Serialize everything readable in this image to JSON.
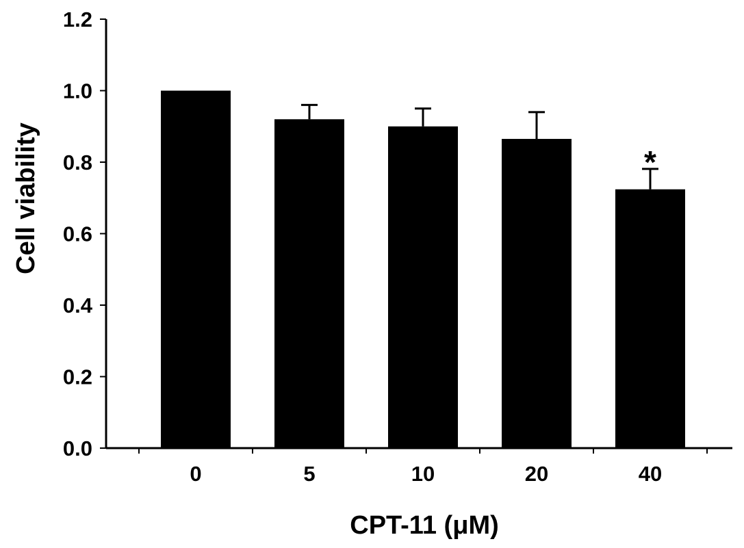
{
  "chart_data": {
    "type": "bar",
    "title": "",
    "xlabel": "CPT-11 (μM)",
    "ylabel": "Cell viability",
    "categories": [
      "0",
      "5",
      "10",
      "20",
      "40"
    ],
    "series": [
      {
        "values": [
          1.0,
          0.92,
          0.9,
          0.865,
          0.724
        ],
        "error": [
          0.0,
          0.04,
          0.05,
          0.075,
          0.057
        ]
      }
    ],
    "ylim": [
      0,
      1.2
    ],
    "yticks": [
      0.0,
      0.2,
      0.4,
      0.6,
      0.8,
      1.0,
      1.2
    ],
    "ytick_labels": [
      "0.0",
      "0.2",
      "0.4",
      "0.6",
      "0.8",
      "1.0",
      "1.2"
    ],
    "annotations": [
      {
        "category": "40",
        "text": "*"
      }
    ],
    "grid": false,
    "legend": "none",
    "colors": {
      "bar": "#000000",
      "axis": "#000000",
      "background": "#ffffff"
    }
  }
}
